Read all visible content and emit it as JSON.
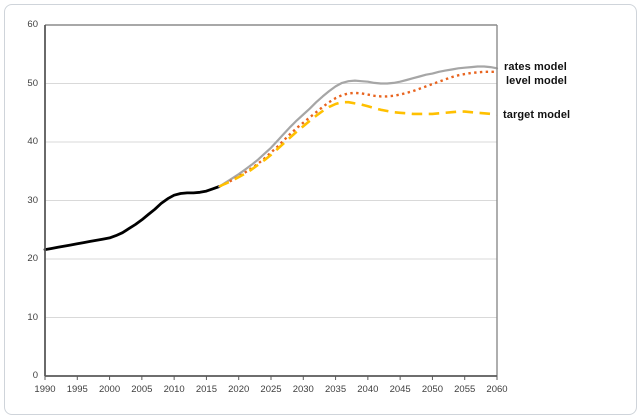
{
  "chart_data": {
    "type": "line",
    "title": "",
    "xlabel": "",
    "ylabel": "",
    "x_axis": {
      "min": 1990,
      "max": 2060,
      "tick_step": 5,
      "ticks": [
        1990,
        1995,
        2000,
        2005,
        2010,
        2015,
        2020,
        2025,
        2030,
        2035,
        2040,
        2045,
        2050,
        2055,
        2060
      ]
    },
    "y_axis": {
      "min": 0,
      "max": 60,
      "tick_step": 10,
      "ticks": [
        0,
        10,
        20,
        30,
        40,
        50,
        60
      ]
    },
    "grid": "horizontal",
    "legend_position": "right-annotations",
    "series": [
      {
        "name": "historical",
        "label": "",
        "color": "#000000",
        "line_style": "solid",
        "points": [
          [
            1990,
            21.6
          ],
          [
            1991,
            21.8
          ],
          [
            1992,
            22.0
          ],
          [
            1993,
            22.2
          ],
          [
            1994,
            22.4
          ],
          [
            1995,
            22.6
          ],
          [
            1996,
            22.8
          ],
          [
            1997,
            23.0
          ],
          [
            1998,
            23.2
          ],
          [
            1999,
            23.4
          ],
          [
            2000,
            23.6
          ],
          [
            2001,
            24.0
          ],
          [
            2002,
            24.5
          ],
          [
            2003,
            25.2
          ],
          [
            2004,
            25.9
          ],
          [
            2005,
            26.7
          ],
          [
            2006,
            27.6
          ],
          [
            2007,
            28.5
          ],
          [
            2008,
            29.5
          ],
          [
            2009,
            30.3
          ],
          [
            2010,
            30.9
          ],
          [
            2011,
            31.2
          ],
          [
            2012,
            31.3
          ],
          [
            2013,
            31.3
          ],
          [
            2014,
            31.4
          ],
          [
            2015,
            31.6
          ],
          [
            2016,
            32.0
          ],
          [
            2017,
            32.4
          ]
        ]
      },
      {
        "name": "rates-model",
        "label": "rates model",
        "color": "#a6a6a6",
        "line_style": "solid",
        "points": [
          [
            2017,
            32.4
          ],
          [
            2018,
            33.1
          ],
          [
            2019,
            33.8
          ],
          [
            2020,
            34.5
          ],
          [
            2021,
            35.3
          ],
          [
            2022,
            36.1
          ],
          [
            2023,
            37.0
          ],
          [
            2024,
            38.0
          ],
          [
            2025,
            39.0
          ],
          [
            2026,
            40.2
          ],
          [
            2027,
            41.4
          ],
          [
            2028,
            42.6
          ],
          [
            2029,
            43.7
          ],
          [
            2030,
            44.7
          ],
          [
            2031,
            45.7
          ],
          [
            2032,
            46.8
          ],
          [
            2033,
            47.8
          ],
          [
            2034,
            48.7
          ],
          [
            2035,
            49.5
          ],
          [
            2036,
            50.1
          ],
          [
            2037,
            50.4
          ],
          [
            2038,
            50.5
          ],
          [
            2039,
            50.4
          ],
          [
            2040,
            50.3
          ],
          [
            2041,
            50.1
          ],
          [
            2042,
            50.0
          ],
          [
            2043,
            50.0
          ],
          [
            2044,
            50.1
          ],
          [
            2045,
            50.3
          ],
          [
            2046,
            50.6
          ],
          [
            2047,
            50.9
          ],
          [
            2048,
            51.2
          ],
          [
            2049,
            51.5
          ],
          [
            2050,
            51.7
          ],
          [
            2051,
            52.0
          ],
          [
            2052,
            52.2
          ],
          [
            2053,
            52.4
          ],
          [
            2054,
            52.6
          ],
          [
            2055,
            52.7
          ],
          [
            2056,
            52.8
          ],
          [
            2057,
            52.9
          ],
          [
            2058,
            52.9
          ],
          [
            2059,
            52.8
          ],
          [
            2060,
            52.6
          ]
        ]
      },
      {
        "name": "level-model",
        "label": "level model",
        "color": "#e8641f",
        "line_style": "dotted",
        "points": [
          [
            2017,
            32.4
          ],
          [
            2018,
            32.9
          ],
          [
            2019,
            33.5
          ],
          [
            2020,
            34.1
          ],
          [
            2021,
            34.8
          ],
          [
            2022,
            35.5
          ],
          [
            2023,
            36.3
          ],
          [
            2024,
            37.2
          ],
          [
            2025,
            38.2
          ],
          [
            2026,
            39.2
          ],
          [
            2027,
            40.3
          ],
          [
            2028,
            41.4
          ],
          [
            2029,
            42.4
          ],
          [
            2030,
            43.3
          ],
          [
            2031,
            44.2
          ],
          [
            2032,
            45.1
          ],
          [
            2033,
            46.0
          ],
          [
            2034,
            46.8
          ],
          [
            2035,
            47.5
          ],
          [
            2036,
            48.0
          ],
          [
            2037,
            48.3
          ],
          [
            2038,
            48.4
          ],
          [
            2039,
            48.3
          ],
          [
            2040,
            48.1
          ],
          [
            2041,
            47.9
          ],
          [
            2042,
            47.8
          ],
          [
            2043,
            47.8
          ],
          [
            2044,
            47.9
          ],
          [
            2045,
            48.1
          ],
          [
            2046,
            48.4
          ],
          [
            2047,
            48.7
          ],
          [
            2048,
            49.1
          ],
          [
            2049,
            49.5
          ],
          [
            2050,
            49.9
          ],
          [
            2051,
            50.3
          ],
          [
            2052,
            50.7
          ],
          [
            2053,
            51.1
          ],
          [
            2054,
            51.4
          ],
          [
            2055,
            51.6
          ],
          [
            2056,
            51.8
          ],
          [
            2057,
            51.9
          ],
          [
            2058,
            52.0
          ],
          [
            2059,
            52.0
          ],
          [
            2060,
            52.0
          ]
        ]
      },
      {
        "name": "target-model",
        "label": "target model",
        "color": "#ffc000",
        "line_style": "dashed",
        "points": [
          [
            2017,
            32.4
          ],
          [
            2018,
            32.9
          ],
          [
            2019,
            33.4
          ],
          [
            2020,
            34.0
          ],
          [
            2021,
            34.6
          ],
          [
            2022,
            35.3
          ],
          [
            2023,
            36.1
          ],
          [
            2024,
            36.9
          ],
          [
            2025,
            37.8
          ],
          [
            2026,
            38.8
          ],
          [
            2027,
            39.8
          ],
          [
            2028,
            40.8
          ],
          [
            2029,
            41.8
          ],
          [
            2030,
            42.7
          ],
          [
            2031,
            43.6
          ],
          [
            2032,
            44.5
          ],
          [
            2033,
            45.3
          ],
          [
            2034,
            46.0
          ],
          [
            2035,
            46.5
          ],
          [
            2036,
            46.8
          ],
          [
            2037,
            46.8
          ],
          [
            2038,
            46.6
          ],
          [
            2039,
            46.4
          ],
          [
            2040,
            46.1
          ],
          [
            2041,
            45.8
          ],
          [
            2042,
            45.5
          ],
          [
            2043,
            45.3
          ],
          [
            2044,
            45.1
          ],
          [
            2045,
            45.0
          ],
          [
            2046,
            44.9
          ],
          [
            2047,
            44.8
          ],
          [
            2048,
            44.8
          ],
          [
            2049,
            44.8
          ],
          [
            2050,
            44.8
          ],
          [
            2051,
            44.9
          ],
          [
            2052,
            45.0
          ],
          [
            2053,
            45.1
          ],
          [
            2054,
            45.2
          ],
          [
            2055,
            45.2
          ],
          [
            2056,
            45.1
          ],
          [
            2057,
            45.0
          ],
          [
            2058,
            44.9
          ],
          [
            2059,
            44.8
          ],
          [
            2060,
            44.7
          ]
        ]
      }
    ]
  }
}
